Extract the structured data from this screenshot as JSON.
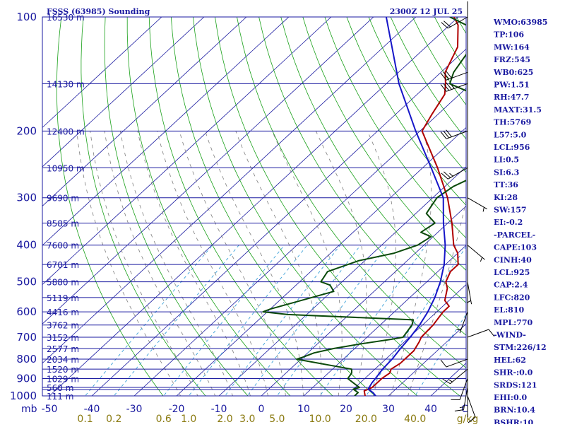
{
  "header": {
    "title": "FSSS (63985) Sounding",
    "datetime": "2300Z 12 JUL 25"
  },
  "colors": {
    "isobar": "#1a1aa0",
    "isotherm": "#1a1aa0",
    "dry_adiabat": "#19a019",
    "moist_adiabat": "#7f7f7f",
    "mixing_ratio": "#3aa0d8",
    "temperature": "#b00000",
    "dewpoint": "#0a4a0a",
    "parcel": "#1616c8",
    "wind_axis": "#000000"
  },
  "chart_data": {
    "type": "skew-t log-p",
    "title": "FSSS (63985) Sounding",
    "valid_time": "2300Z 12 JUL 25",
    "pressure_axis": {
      "unit": "mb",
      "ticks": [
        1000,
        900,
        800,
        700,
        600,
        500,
        400,
        300,
        200,
        100
      ],
      "range": [
        1000,
        100
      ],
      "log_scale": true
    },
    "temperature_axis": {
      "unit": "C",
      "ticks": [
        -50,
        -40,
        -30,
        -20,
        -10,
        0,
        10,
        20,
        30,
        40
      ],
      "axis_label": "mb",
      "end_label": "C"
    },
    "mixing_ratio_axis": {
      "unit": "g/kg",
      "ticks": [
        "0.1",
        "0.2",
        "0.6",
        "1.0",
        "2.0",
        "3.0",
        "5.0",
        "10.0",
        "20.0",
        "40.0"
      ],
      "end_label": "g/kg"
    },
    "height_labels": [
      {
        "p": 100,
        "label": "16530 m"
      },
      {
        "p": 150,
        "label": "14130 m"
      },
      {
        "p": 200,
        "label": "12400 m"
      },
      {
        "p": 250,
        "label": "10950 m"
      },
      {
        "p": 300,
        "label": "9690 m"
      },
      {
        "p": 350,
        "label": "8585 m"
      },
      {
        "p": 400,
        "label": "7600 m"
      },
      {
        "p": 450,
        "label": "6701 m"
      },
      {
        "p": 500,
        "label": "5880 m"
      },
      {
        "p": 550,
        "label": "5119 m"
      },
      {
        "p": 600,
        "label": "4416 m"
      },
      {
        "p": 650,
        "label": "3762 m"
      },
      {
        "p": 700,
        "label": "3152 m"
      },
      {
        "p": 750,
        "label": "2577 m"
      },
      {
        "p": 800,
        "label": "2034 m"
      },
      {
        "p": 850,
        "label": "1520 m"
      },
      {
        "p": 900,
        "label": "1029 m"
      },
      {
        "p": 950,
        "label": "560 m"
      },
      {
        "p": 1000,
        "label": "111 m"
      }
    ],
    "series": [
      {
        "name": "temperature",
        "points": [
          [
            1000,
            24.5
          ],
          [
            970,
            23.0
          ],
          [
            950,
            24.0
          ],
          [
            900,
            24.0
          ],
          [
            870,
            24.5
          ],
          [
            850,
            23.8
          ],
          [
            820,
            24.5
          ],
          [
            800,
            24.5
          ],
          [
            760,
            24.5
          ],
          [
            720,
            23.5
          ],
          [
            700,
            22.8
          ],
          [
            650,
            22.5
          ],
          [
            600,
            21.5
          ],
          [
            580,
            21.5
          ],
          [
            560,
            19.0
          ],
          [
            520,
            16.5
          ],
          [
            500,
            14.5
          ],
          [
            470,
            13.0
          ],
          [
            450,
            13.0
          ],
          [
            420,
            10.0
          ],
          [
            400,
            7.0
          ],
          [
            350,
            1.0
          ],
          [
            300,
            -6.5
          ],
          [
            250,
            -16.5
          ],
          [
            200,
            -29.5
          ],
          [
            180,
            -31.5
          ],
          [
            160,
            -33.5
          ],
          [
            150,
            -36.0
          ],
          [
            140,
            -39.0
          ],
          [
            120,
            -42.5
          ],
          [
            105,
            -48.0
          ],
          [
            100,
            -51.0
          ]
        ]
      },
      {
        "name": "dewpoint",
        "points": [
          [
            1000,
            22.0
          ],
          [
            980,
            22.0
          ],
          [
            960,
            20.0
          ],
          [
            950,
            21.0
          ],
          [
            920,
            18.0
          ],
          [
            900,
            16.0
          ],
          [
            870,
            15.5
          ],
          [
            850,
            14.5
          ],
          [
            800,
            -1.0
          ],
          [
            790,
            0.0
          ],
          [
            770,
            1.5
          ],
          [
            750,
            5.0
          ],
          [
            730,
            10.0
          ],
          [
            710,
            16.0
          ],
          [
            700,
            18.5
          ],
          [
            650,
            17.5
          ],
          [
            630,
            16.5
          ],
          [
            610,
            -14.5
          ],
          [
            600,
            -21.0
          ],
          [
            590,
            -20.0
          ],
          [
            530,
            -9.5
          ],
          [
            510,
            -12.0
          ],
          [
            500,
            -15.0
          ],
          [
            470,
            -16.0
          ],
          [
            440,
            -11.5
          ],
          [
            420,
            -5.0
          ],
          [
            400,
            -1.5
          ],
          [
            380,
            -0.5
          ],
          [
            370,
            -4.0
          ],
          [
            350,
            -3.0
          ],
          [
            330,
            -7.5
          ],
          [
            300,
            -9.0
          ],
          [
            280,
            -8.0
          ],
          [
            260,
            -5.0
          ],
          [
            250,
            -7.0
          ],
          [
            220,
            -12.5
          ],
          [
            210,
            -13.0
          ],
          [
            200,
            -14.5
          ],
          [
            185,
            -17.5
          ],
          [
            170,
            -20.0
          ],
          [
            160,
            -26.5
          ],
          [
            150,
            -35.0
          ],
          [
            140,
            -37.0
          ],
          [
            110,
            -40.5
          ],
          [
            100,
            -52.0
          ]
        ]
      },
      {
        "name": "parcel",
        "points": [
          [
            1000,
            27.0
          ],
          [
            980,
            25.5
          ],
          [
            960,
            23.5
          ],
          [
            925,
            22.8
          ],
          [
            900,
            22.5
          ],
          [
            850,
            21.8
          ],
          [
            800,
            21.5
          ],
          [
            750,
            20.8
          ],
          [
            700,
            20.2
          ],
          [
            650,
            19.3
          ],
          [
            600,
            17.9
          ],
          [
            550,
            15.9
          ],
          [
            500,
            13.2
          ],
          [
            450,
            9.7
          ],
          [
            400,
            5.0
          ],
          [
            350,
            -1.0
          ],
          [
            300,
            -7.5
          ],
          [
            250,
            -18.0
          ],
          [
            200,
            -31.0
          ],
          [
            150,
            -47.0
          ],
          [
            120,
            -58.0
          ],
          [
            100,
            -67.0
          ]
        ]
      }
    ],
    "wind_barbs": [
      {
        "p": 1000,
        "dir": 160,
        "spd": 10
      },
      {
        "p": 950,
        "dir": 190,
        "spd": 15
      },
      {
        "p": 900,
        "dir": 200,
        "spd": 10
      },
      {
        "p": 850,
        "dir": 230,
        "spd": 15
      },
      {
        "p": 800,
        "dir": 250,
        "spd": 10
      },
      {
        "p": 700,
        "dir": 70,
        "spd": 10
      },
      {
        "p": 600,
        "dir": 200,
        "spd": 5
      },
      {
        "p": 500,
        "dir": 170,
        "spd": 5
      },
      {
        "p": 400,
        "dir": 130,
        "spd": 5
      },
      {
        "p": 300,
        "dir": 120,
        "spd": 5
      },
      {
        "p": 250,
        "dir": 240,
        "spd": 25
      },
      {
        "p": 200,
        "dir": 250,
        "spd": 30
      },
      {
        "p": 150,
        "dir": 250,
        "spd": 35
      },
      {
        "p": 140,
        "dir": 250,
        "spd": 30
      },
      {
        "p": 100,
        "dir": 240,
        "spd": 20
      }
    ]
  },
  "indices": [
    "WMO:63985",
    "TP:106",
    "MW:164",
    "FRZ:545",
    "WB0:625",
    "PW:1.51",
    "RH:47.7",
    "MAXT:31.5",
    "TH:5769",
    "L57:5.0",
    "LCL:956",
    "LI:0.5",
    "SI:6.3",
    "TT:36",
    "KI:28",
    "SW:157",
    "EI:-0.2",
    "-PARCEL-",
    "CAPE:103",
    "CINH:40",
    "LCL:925",
    "CAP:2.4",
    "LFC:820",
    "EL:810",
    "MPL:770",
    "-WIND-",
    "STM:226/12",
    "HEL:62",
    "SHR-:0.0",
    "SRDS:121",
    "EHI:0.0",
    "BRN:10.4",
    "BSHR:10"
  ]
}
